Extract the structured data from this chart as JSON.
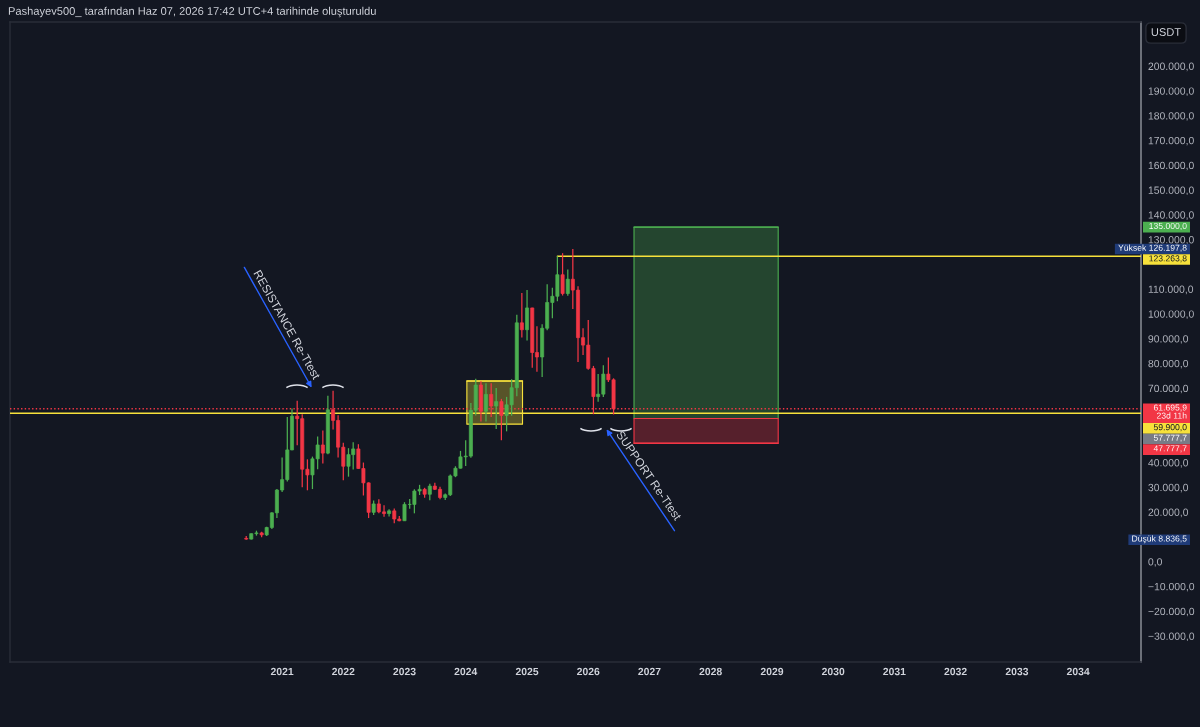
{
  "chart_data": {
    "type": "candlestick",
    "title": "Pashayev500_ tarafından Haz 07, 2026 17:42 UTC+4 tarihinde oluşturuldu",
    "ylabel": "USDT",
    "x": [
      "2020-06",
      "2020-07",
      "2020-08",
      "2020-09",
      "2020-10",
      "2020-11",
      "2020-12",
      "2021-01",
      "2021-02",
      "2021-03",
      "2021-04",
      "2021-05",
      "2021-06",
      "2021-07",
      "2021-08",
      "2021-09",
      "2021-10",
      "2021-11",
      "2021-12",
      "2022-01",
      "2022-02",
      "2022-03",
      "2022-04",
      "2022-05",
      "2022-06",
      "2022-07",
      "2022-08",
      "2022-09",
      "2022-10",
      "2022-11",
      "2022-12",
      "2023-01",
      "2023-02",
      "2023-03",
      "2023-04",
      "2023-05",
      "2023-06",
      "2023-07",
      "2023-08",
      "2023-09",
      "2023-10",
      "2023-11",
      "2023-12",
      "2024-01",
      "2024-02",
      "2024-03",
      "2024-04",
      "2024-05",
      "2024-06",
      "2024-07",
      "2024-08",
      "2024-09",
      "2024-10",
      "2024-11",
      "2024-12",
      "2025-01",
      "2025-02",
      "2025-03",
      "2025-04",
      "2025-05",
      "2025-06",
      "2025-07",
      "2025-08",
      "2025-09",
      "2025-10",
      "2025-11",
      "2025-12",
      "2026-01",
      "2026-02",
      "2026-03",
      "2026-04",
      "2026-05",
      "2026-06"
    ],
    "ohlc": [
      [
        9400,
        10400,
        8836.5,
        9100
      ],
      [
        9100,
        11400,
        8900,
        11300
      ],
      [
        11300,
        12500,
        10500,
        11600
      ],
      [
        11600,
        12100,
        9800,
        10800
      ],
      [
        10800,
        14100,
        10400,
        13800
      ],
      [
        13800,
        19900,
        13200,
        19700
      ],
      [
        19700,
        29300,
        17600,
        28900
      ],
      [
        28900,
        42000,
        28100,
        33100
      ],
      [
        33100,
        58400,
        32300,
        45100
      ],
      [
        45100,
        61800,
        45000,
        58700
      ],
      [
        58700,
        64900,
        47000,
        57700
      ],
      [
        57700,
        59500,
        30000,
        37300
      ],
      [
        37300,
        41300,
        28800,
        35000
      ],
      [
        35000,
        42400,
        29300,
        41500
      ],
      [
        41500,
        50500,
        37300,
        47100
      ],
      [
        47100,
        52900,
        39600,
        43800
      ],
      [
        43800,
        67000,
        43300,
        61300
      ],
      [
        61300,
        69000,
        53300,
        57000
      ],
      [
        57000,
        59100,
        42000,
        46200
      ],
      [
        46200,
        48000,
        32900,
        38500
      ],
      [
        38500,
        45800,
        34300,
        43200
      ],
      [
        43200,
        48200,
        37200,
        45500
      ],
      [
        45500,
        47400,
        37500,
        37600
      ],
      [
        37600,
        40000,
        26700,
        31800
      ],
      [
        31800,
        32000,
        17600,
        19900
      ],
      [
        19900,
        24700,
        18800,
        23300
      ],
      [
        23300,
        25200,
        19500,
        20100
      ],
      [
        20100,
        22800,
        18100,
        19400
      ],
      [
        19400,
        21100,
        18200,
        20500
      ],
      [
        20500,
        21500,
        15500,
        17200
      ],
      [
        17200,
        18400,
        16300,
        16500
      ],
      [
        16500,
        24000,
        16500,
        23100
      ],
      [
        23100,
        25300,
        21400,
        23100
      ],
      [
        23100,
        29200,
        19500,
        28500
      ],
      [
        28500,
        31000,
        26900,
        29200
      ],
      [
        29200,
        29800,
        25800,
        27200
      ],
      [
        27200,
        31400,
        24800,
        30500
      ],
      [
        30500,
        31800,
        28900,
        29200
      ],
      [
        29200,
        30200,
        25200,
        25900
      ],
      [
        25900,
        27500,
        24900,
        27000
      ],
      [
        27000,
        35200,
        26500,
        34600
      ],
      [
        34600,
        38500,
        34100,
        37700
      ],
      [
        37700,
        44700,
        37600,
        42300
      ],
      [
        42300,
        49000,
        38600,
        42600
      ],
      [
        42600,
        64000,
        41900,
        61100
      ],
      [
        61100,
        73800,
        59000,
        71300
      ],
      [
        71300,
        72800,
        56600,
        60700
      ],
      [
        60700,
        72000,
        56600,
        67500
      ],
      [
        67500,
        72000,
        58400,
        62800
      ],
      [
        62800,
        70100,
        53500,
        64600
      ],
      [
        64600,
        65700,
        49000,
        59000
      ],
      [
        59000,
        66500,
        52600,
        63300
      ],
      [
        63300,
        73600,
        58900,
        70200
      ],
      [
        70200,
        99600,
        66800,
        96400
      ],
      [
        96400,
        108400,
        90500,
        93600
      ],
      [
        93600,
        109600,
        89300,
        102400
      ],
      [
        102400,
        102500,
        78300,
        84400
      ],
      [
        84400,
        95000,
        76600,
        82600
      ],
      [
        82600,
        95800,
        74500,
        94200
      ],
      [
        94200,
        112000,
        93400,
        104600
      ],
      [
        104600,
        110500,
        98200,
        107100
      ],
      [
        107100,
        123263.8,
        105100,
        115800
      ],
      [
        115800,
        124500,
        107400,
        108200
      ],
      [
        108200,
        117900,
        107300,
        114000
      ],
      [
        114000,
        126197.8,
        102000,
        109600
      ],
      [
        109600,
        111200,
        80600,
        90400
      ],
      [
        90400,
        94200,
        83400,
        87400
      ],
      [
        87400,
        97500,
        77500,
        78000
      ],
      [
        78000,
        79000,
        59500,
        66600
      ],
      [
        66600,
        75700,
        64500,
        67600
      ],
      [
        67600,
        79300,
        66500,
        75700
      ],
      [
        75700,
        82400,
        72500,
        73400
      ],
      [
        73400,
        74000,
        59400,
        61695.9
      ]
    ],
    "colors": [
      "#f23645",
      "#4caf50",
      "#4caf50",
      "#f23645",
      "#4caf50",
      "#4caf50",
      "#4caf50",
      "#4caf50",
      "#4caf50",
      "#4caf50",
      "#f23645",
      "#f23645",
      "#f23645",
      "#4caf50",
      "#4caf50",
      "#f23645",
      "#4caf50",
      "#f23645",
      "#f23645",
      "#f23645",
      "#4caf50",
      "#4caf50",
      "#f23645",
      "#f23645",
      "#f23645",
      "#4caf50",
      "#f23645",
      "#f23645",
      "#4caf50",
      "#f23645",
      "#f23645",
      "#4caf50",
      "#4caf50",
      "#4caf50",
      "#4caf50",
      "#f23645",
      "#4caf50",
      "#f23645",
      "#f23645",
      "#4caf50",
      "#4caf50",
      "#4caf50",
      "#4caf50",
      "#4caf50",
      "#4caf50",
      "#4caf50",
      "#f23645",
      "#4caf50",
      "#f23645",
      "#4caf50",
      "#f23645",
      "#4caf50",
      "#4caf50",
      "#4caf50",
      "#f23645",
      "#4caf50",
      "#f23645",
      "#f23645",
      "#4caf50",
      "#4caf50",
      "#4caf50",
      "#4caf50",
      "#f23645",
      "#4caf50",
      "#f23645",
      "#f23645",
      "#f23645",
      "#f23645",
      "#f23645",
      "#4caf50",
      "#4caf50",
      "#f23645",
      "#f23645"
    ],
    "series": [
      {
        "type": "line",
        "color": "#f7e13b",
        "x": [
          "2024-01-08",
          "2024-12-05"
        ],
        "values": [
          72900,
          72900
        ],
        "lower": [
          55500,
          55500
        ],
        "upper": [
          72900,
          72900
        ]
      },
      {
        "type": "line",
        "color": "#4caf50",
        "x": [
          "2026-10-01",
          "2029-02-07"
        ],
        "values": [
          135000,
          135000
        ],
        "lower": [
          57777.7,
          57777.7
        ],
        "upper": [
          135000,
          135000
        ]
      },
      {
        "type": "line",
        "color": "#f23645",
        "x": [
          "2026-10-01",
          "2029-02-07"
        ],
        "values": [
          47777.7,
          47777.7
        ],
        "lower": [
          47777.7,
          47777.7
        ],
        "upper": [
          57777.7,
          57777.7
        ]
      },
      {
        "type": "line",
        "color": "#f7e13b",
        "x": [
          "2025-07-01",
          "2035-01-11"
        ],
        "values": [
          123263.8,
          123263.8
        ],
        "value_labels": [
          null,
          "123.263,8"
        ]
      }
    ],
    "ref_lines": [
      {
        "axis": "y",
        "value": 59900,
        "label": "59.900,0",
        "color": "#f7e13b",
        "line_style": "solid"
      },
      {
        "axis": "y",
        "value": 61695.9,
        "label": "61.695,9\n23d 11h",
        "color": "#f23645",
        "line_style": "dotted"
      }
    ],
    "annotations": [
      "RESISTANCE Re-Ttest",
      "SUPPORT Re-Ttest",
      "Yüksek 126.197,8",
      "Düşük 8.836,5",
      "135.000,0",
      "57.777,7",
      "47.777,7"
    ],
    "xlim": [
      "2016-07-23",
      "2035-01-11"
    ],
    "ylim": [
      -40500,
      217800
    ],
    "xticks": [
      "2021",
      "2022",
      "2023",
      "2024",
      "2025",
      "2026",
      "2027",
      "2028",
      "2029",
      "2030",
      "2031",
      "2032",
      "2033",
      "2034"
    ],
    "yticks": [
      {
        "value": -30000,
        "label": "−30.000,0"
      },
      {
        "value": -20000,
        "label": "−20.000,0"
      },
      {
        "value": -10000,
        "label": "−10.000,0"
      },
      {
        "value": 0,
        "label": "0,0"
      },
      {
        "value": 20000,
        "label": "20.000,0"
      },
      {
        "value": 30000,
        "label": "30.000,0"
      },
      {
        "value": 40000,
        "label": "40.000,0"
      },
      {
        "value": 70000,
        "label": "70.000,0"
      },
      {
        "value": 80000,
        "label": "80.000,0"
      },
      {
        "value": 90000,
        "label": "90.000,0"
      },
      {
        "value": 100000,
        "label": "100.000,0"
      },
      {
        "value": 110000,
        "label": "110.000,0"
      },
      {
        "value": 130000,
        "label": "130.000,0"
      },
      {
        "value": 140000,
        "label": "140.000,0"
      },
      {
        "value": 150000,
        "label": "150.000,0"
      },
      {
        "value": 160000,
        "label": "160.000,0"
      },
      {
        "value": 170000,
        "label": "170.000,0"
      },
      {
        "value": 180000,
        "label": "180.000,0"
      },
      {
        "value": 190000,
        "label": "190.000,0"
      },
      {
        "value": 200000,
        "label": "200.000,0"
      }
    ]
  }
}
